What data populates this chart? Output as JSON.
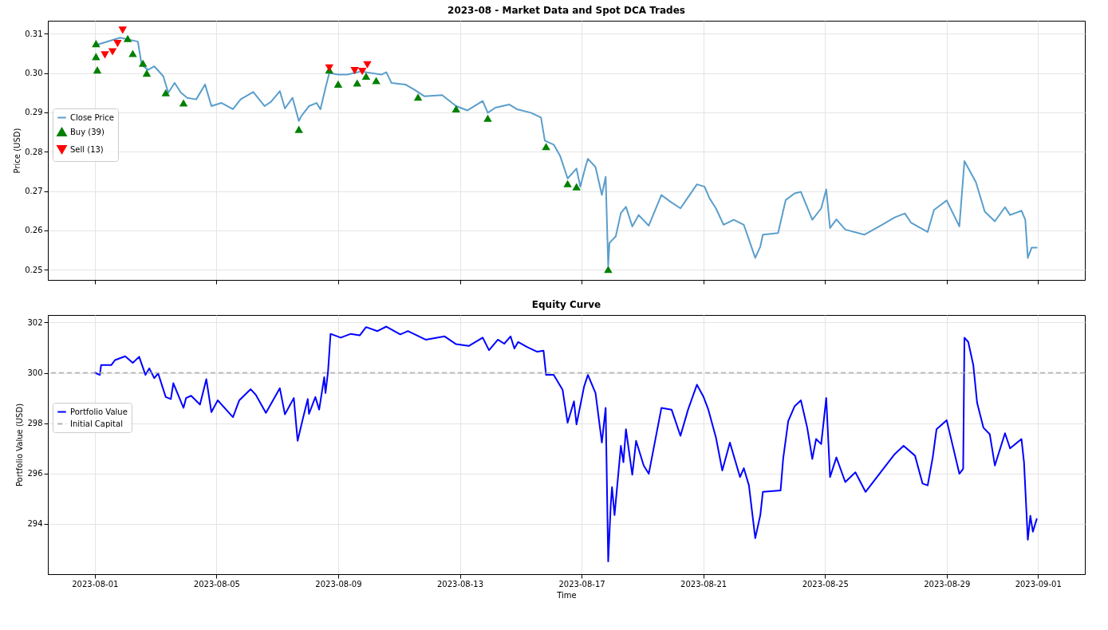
{
  "chart_data": [
    {
      "type": "line",
      "title": "2023-08 - Market Data and Spot DCA Trades",
      "ylabel": "Price (USD)",
      "xlim": [
        "2023-07-30T11:00",
        "2023-09-02T13:00"
      ],
      "xticks": [
        "2023-08-01",
        "2023-08-05",
        "2023-08-09",
        "2023-08-13",
        "2023-08-17",
        "2023-08-21",
        "2023-08-25",
        "2023-08-29",
        "2023-09-01"
      ],
      "ylim": [
        0.2474,
        0.3133
      ],
      "yticks": [
        0.25,
        0.26,
        0.27,
        0.28,
        0.29,
        {
          "value": 0.3,
          "label": "0.30"
        },
        0.31
      ],
      "grid": true,
      "legend": "top left",
      "tick_labels": "y",
      "series": [
        {
          "name": "Close Price",
          "color": "#5a9ecc",
          "x": [
            "2023-08-01T00:00",
            "2023-08-01T20:00",
            "2023-08-02T10:00",
            "2023-08-02T13:00",
            "2023-08-02T18:00",
            "2023-08-02T23:00",
            "2023-08-03T06:00",
            "2023-08-03T10:00",
            "2023-08-03T15:00",
            "2023-08-03T20:00",
            "2023-08-04T01:00",
            "2023-08-04T08:00",
            "2023-08-04T15:00",
            "2023-08-04T20:00",
            "2023-08-05T04:00",
            "2023-08-05T13:00",
            "2023-08-05T19:00",
            "2023-08-06T05:00",
            "2023-08-06T14:00",
            "2023-08-06T19:00",
            "2023-08-07T02:00",
            "2023-08-07T06:00",
            "2023-08-07T12:00",
            "2023-08-07T17:00",
            "2023-08-07T19:00",
            "2023-08-08T01:00",
            "2023-08-08T07:00",
            "2023-08-08T10:00",
            "2023-08-08T14:00",
            "2023-08-08T17:00",
            "2023-08-09T00:00",
            "2023-08-09T07:00",
            "2023-08-09T18:00",
            "2023-08-10T10:00",
            "2023-08-10T14:00",
            "2023-08-10T18:00",
            "2023-08-11T05:00",
            "2023-08-11T12:00",
            "2023-08-11T20:00",
            "2023-08-12T10:00",
            "2023-08-12T21:00",
            "2023-08-13T06:00",
            "2023-08-13T18:00",
            "2023-08-13T22:00",
            "2023-08-14T04:00",
            "2023-08-14T15:00",
            "2023-08-14T21:00",
            "2023-08-15T08:00",
            "2023-08-15T16:00",
            "2023-08-15T19:00",
            "2023-08-16T02:00",
            "2023-08-16T07:00",
            "2023-08-16T13:00",
            "2023-08-16T20:00",
            "2023-08-16T23:00",
            "2023-08-17T03:00",
            "2023-08-17T05:00",
            "2023-08-17T11:00",
            "2023-08-17T16:00",
            "2023-08-17T19:00",
            "2023-08-17T21:00",
            "2023-08-17T22:00",
            "2023-08-18T03:00",
            "2023-08-18T07:00",
            "2023-08-18T11:00",
            "2023-08-18T16:00",
            "2023-08-18T21:00",
            "2023-08-19T05:00",
            "2023-08-19T15:00",
            "2023-08-19T22:00",
            "2023-08-20T06:00",
            "2023-08-20T19:00",
            "2023-08-21T01:00",
            "2023-08-21T05:00",
            "2023-08-21T10:00",
            "2023-08-21T16:00",
            "2023-08-22T00:00",
            "2023-08-22T08:00",
            "2023-08-22T17:00",
            "2023-08-22T21:00",
            "2023-08-22T23:00",
            "2023-08-23T11:00",
            "2023-08-23T17:00",
            "2023-08-24T00:00",
            "2023-08-24T05:00",
            "2023-08-24T14:00",
            "2023-08-24T21:00",
            "2023-08-25T01:00",
            "2023-08-25T04:00",
            "2023-08-25T09:00",
            "2023-08-25T16:00",
            "2023-08-26T07:00",
            "2023-08-26T21:00",
            "2023-08-27T07:00",
            "2023-08-27T15:00",
            "2023-08-27T20:00",
            "2023-08-28T09:00",
            "2023-08-28T14:00",
            "2023-08-29T00:00",
            "2023-08-29T10:00",
            "2023-08-29T14:00",
            "2023-08-29T23:00",
            "2023-08-30T06:00",
            "2023-08-30T14:00",
            "2023-08-30T22:00",
            "2023-08-31T02:00",
            "2023-08-31T11:00",
            "2023-08-31T14:00",
            "2023-08-31T16:00",
            "2023-08-31T19:00",
            "2023-08-31T23:00"
          ],
          "values": [
            0.307,
            0.309,
            0.308,
            0.3021,
            0.3008,
            0.3017,
            0.2992,
            0.295,
            0.2975,
            0.295,
            0.2937,
            0.2933,
            0.2971,
            0.2916,
            0.2924,
            0.2908,
            0.2933,
            0.2952,
            0.2916,
            0.2927,
            0.2954,
            0.291,
            0.2937,
            0.2878,
            0.2891,
            0.2916,
            0.2924,
            0.2908,
            0.2962,
            0.3,
            0.2996,
            0.2996,
            0.3004,
            0.2996,
            0.3002,
            0.2975,
            0.2971,
            0.2958,
            0.2941,
            0.2944,
            0.2916,
            0.2905,
            0.2929,
            0.2899,
            0.2912,
            0.292,
            0.2908,
            0.2899,
            0.2887,
            0.2828,
            0.2818,
            0.279,
            0.2732,
            0.2757,
            0.2711,
            0.2761,
            0.2782,
            0.2761,
            0.269,
            0.2736,
            0.251,
            0.2568,
            0.2585,
            0.2644,
            0.266,
            0.261,
            0.2639,
            0.2612,
            0.269,
            0.2673,
            0.2656,
            0.2717,
            0.2711,
            0.2681,
            0.2656,
            0.2614,
            0.2627,
            0.2614,
            0.253,
            0.2559,
            0.2589,
            0.2593,
            0.2677,
            0.2694,
            0.2698,
            0.2627,
            0.2656,
            0.2704,
            0.2606,
            0.2628,
            0.2602,
            0.2589,
            0.2614,
            0.2633,
            0.2643,
            0.2619,
            0.2596,
            0.2652,
            0.2676,
            0.261,
            0.2776,
            0.2723,
            0.2648,
            0.2623,
            0.2659,
            0.2639,
            0.265,
            0.2627,
            0.253,
            0.2556,
            0.2556
          ]
        },
        {
          "name": "Buy (39)",
          "type": "scatter",
          "marker": "triangle",
          "color": "#008000",
          "x": [
            "2023-08-01T01:00",
            "2023-08-01T01:00",
            "2023-08-01T02:00",
            "2023-08-02T02:00",
            "2023-08-02T06:00",
            "2023-08-02T14:00",
            "2023-08-02T17:00",
            "2023-08-03T08:00",
            "2023-08-03T22:00",
            "2023-08-07T17:00",
            "2023-08-08T17:00",
            "2023-08-09T00:00",
            "2023-08-09T15:00",
            "2023-08-09T22:00",
            "2023-08-10T06:00",
            "2023-08-11T15:00",
            "2023-08-12T21:00",
            "2023-08-13T22:00",
            "2023-08-15T20:00",
            "2023-08-16T13:00",
            "2023-08-16T20:00",
            "2023-08-17T21:00"
          ],
          "values": [
            0.3075,
            0.3042,
            0.3008,
            0.3088,
            0.305,
            0.3025,
            0.3,
            0.295,
            0.2924,
            0.2857,
            0.3008,
            0.2972,
            0.2975,
            0.2992,
            0.2981,
            0.2939,
            0.2909,
            0.2885,
            0.2813,
            0.2719,
            0.2711,
            0.2501
          ]
        },
        {
          "name": "Sell (13)",
          "type": "scatter",
          "marker": "triangle-down",
          "color": "#ff0000",
          "x": [
            "2023-08-01T08:00",
            "2023-08-01T14:00",
            "2023-08-01T18:00",
            "2023-08-01T22:00",
            "2023-08-08T17:00",
            "2023-08-09T13:00",
            "2023-08-09T19:00",
            "2023-08-09T23:00"
          ],
          "values": [
            0.3046,
            0.3054,
            0.3075,
            0.3109,
            0.3013,
            0.3006,
            0.3004,
            0.3021
          ]
        }
      ]
    },
    {
      "type": "line",
      "title": "Equity Curve",
      "xlabel": "Time",
      "ylabel": "Portfolio Value (USD)",
      "xlim": [
        "2023-07-30T11:00",
        "2023-09-02T13:00"
      ],
      "xticks": [
        "2023-08-01",
        "2023-08-05",
        "2023-08-09",
        "2023-08-13",
        "2023-08-17",
        "2023-08-21",
        "2023-08-25",
        "2023-08-29",
        "2023-09-01"
      ],
      "ylim": [
        292.0,
        302.3
      ],
      "yticks": [
        294,
        296,
        298,
        300,
        302
      ],
      "grid": true,
      "legend": "top left",
      "ref_lines": [
        {
          "axis": "y",
          "value": 300,
          "label": "Initial Capital",
          "color": "#b0b0b0",
          "line_style": "dashed"
        }
      ],
      "series": [
        {
          "name": "Portfolio Value",
          "color": "#0000ff",
          "x": [
            "2023-08-01T00:00",
            "2023-08-01T04:00",
            "2023-08-01T05:00",
            "2023-08-01T13:00",
            "2023-08-01T16:00",
            "2023-08-02T00:00",
            "2023-08-02T06:00",
            "2023-08-02T11:00",
            "2023-08-02T16:00",
            "2023-08-02T19:00",
            "2023-08-02T23:00",
            "2023-08-03T02:00",
            "2023-08-03T08:00",
            "2023-08-03T12:00",
            "2023-08-03T14:00",
            "2023-08-03T22:00",
            "2023-08-04T00:00",
            "2023-08-04T04:00",
            "2023-08-04T11:00",
            "2023-08-04T16:00",
            "2023-08-04T20:00",
            "2023-08-05T01:00",
            "2023-08-05T13:00",
            "2023-08-05T18:00",
            "2023-08-06T03:00",
            "2023-08-06T07:00",
            "2023-08-06T15:00",
            "2023-08-07T02:00",
            "2023-08-07T06:00",
            "2023-08-07T13:00",
            "2023-08-07T16:00",
            "2023-08-07T20:00",
            "2023-08-08T00:00",
            "2023-08-08T01:00",
            "2023-08-08T06:00",
            "2023-08-08T09:00",
            "2023-08-08T13:00",
            "2023-08-08T14:00",
            "2023-08-08T16:00",
            "2023-08-08T18:00",
            "2023-08-09T02:00",
            "2023-08-09T10:00",
            "2023-08-09T17:00",
            "2023-08-09T22:00",
            "2023-08-10T07:00",
            "2023-08-10T14:00",
            "2023-08-11T01:00",
            "2023-08-11T07:00",
            "2023-08-11T21:00",
            "2023-08-12T12:00",
            "2023-08-12T21:00",
            "2023-08-13T07:00",
            "2023-08-13T18:00",
            "2023-08-13T23:00",
            "2023-08-14T06:00",
            "2023-08-14T11:00",
            "2023-08-14T16:00",
            "2023-08-14T19:00",
            "2023-08-14T22:00",
            "2023-08-15T05:00",
            "2023-08-15T13:00",
            "2023-08-15T18:00",
            "2023-08-15T20:00",
            "2023-08-16T02:00",
            "2023-08-16T09:00",
            "2023-08-16T13:00",
            "2023-08-16T18:00",
            "2023-08-16T20:00",
            "2023-08-17T02:00",
            "2023-08-17T05:00",
            "2023-08-17T11:00",
            "2023-08-17T16:00",
            "2023-08-17T19:00",
            "2023-08-17T21:00",
            "2023-08-17T23:00",
            "2023-08-18T00:00",
            "2023-08-18T02:00",
            "2023-08-18T07:00",
            "2023-08-18T09:00",
            "2023-08-18T11:00",
            "2023-08-18T16:00",
            "2023-08-18T19:00",
            "2023-08-19T01:00",
            "2023-08-19T05:00",
            "2023-08-19T15:00",
            "2023-08-19T23:00",
            "2023-08-20T06:00",
            "2023-08-20T12:00",
            "2023-08-20T19:00",
            "2023-08-21T00:00",
            "2023-08-21T04:00",
            "2023-08-21T10:00",
            "2023-08-21T15:00",
            "2023-08-21T21:00",
            "2023-08-22T05:00",
            "2023-08-22T08:00",
            "2023-08-22T12:00",
            "2023-08-22T17:00",
            "2023-08-22T21:00",
            "2023-08-22T23:00",
            "2023-08-23T13:00",
            "2023-08-23T15:00",
            "2023-08-23T19:00",
            "2023-08-24T00:00",
            "2023-08-24T05:00",
            "2023-08-24T10:00",
            "2023-08-24T14:00",
            "2023-08-24T17:00",
            "2023-08-24T21:00",
            "2023-08-25T01:00",
            "2023-08-25T04:00",
            "2023-08-25T09:00",
            "2023-08-25T16:00",
            "2023-08-26T00:00",
            "2023-08-26T08:00",
            "2023-08-26T22:00",
            "2023-08-27T07:00",
            "2023-08-27T14:00",
            "2023-08-27T23:00",
            "2023-08-28T05:00",
            "2023-08-28T09:00",
            "2023-08-28T13:00",
            "2023-08-28T16:00",
            "2023-08-29T00:00",
            "2023-08-29T10:00",
            "2023-08-29T13:00",
            "2023-08-29T14:00",
            "2023-08-29T17:00",
            "2023-08-29T21:00",
            "2023-08-30T00:00",
            "2023-08-30T05:00",
            "2023-08-30T10:00",
            "2023-08-30T14:00",
            "2023-08-30T22:00",
            "2023-08-31T02:00",
            "2023-08-31T11:00",
            "2023-08-31T13:00",
            "2023-08-31T16:00",
            "2023-08-31T18:00",
            "2023-08-31T20:00",
            "2023-08-31T23:00"
          ],
          "values": [
            300.01,
            299.92,
            300.31,
            300.31,
            300.51,
            300.66,
            300.4,
            300.64,
            299.92,
            300.18,
            299.79,
            299.98,
            299.04,
            298.96,
            299.59,
            298.61,
            299.0,
            299.09,
            298.74,
            299.75,
            298.44,
            298.91,
            298.24,
            298.91,
            299.35,
            299.13,
            298.41,
            299.39,
            298.35,
            299.0,
            297.3,
            298.15,
            298.96,
            298.37,
            299.04,
            298.54,
            299.83,
            299.2,
            300.05,
            301.55,
            301.4,
            301.55,
            301.49,
            301.82,
            301.66,
            301.84,
            301.53,
            301.66,
            301.32,
            301.45,
            301.14,
            301.07,
            301.4,
            300.9,
            301.32,
            301.16,
            301.45,
            300.97,
            301.23,
            301.03,
            300.84,
            300.88,
            299.92,
            299.92,
            299.33,
            298.02,
            298.87,
            297.95,
            299.46,
            299.92,
            299.2,
            297.23,
            298.61,
            292.51,
            294.74,
            295.46,
            294.35,
            297.1,
            296.45,
            297.76,
            295.95,
            297.3,
            296.32,
            295.99,
            298.61,
            298.54,
            297.5,
            298.54,
            299.53,
            299.07,
            298.54,
            297.43,
            296.12,
            297.23,
            295.86,
            296.21,
            295.53,
            293.43,
            294.35,
            295.27,
            295.33,
            296.58,
            298.08,
            298.67,
            298.91,
            297.82,
            296.58,
            297.37,
            297.17,
            299.0,
            295.86,
            296.64,
            295.66,
            296.05,
            295.27,
            296.19,
            296.77,
            297.1,
            296.71,
            295.6,
            295.53,
            296.64,
            297.76,
            298.12,
            295.99,
            296.19,
            301.4,
            301.23,
            300.31,
            298.81,
            297.82,
            297.56,
            296.32,
            297.6,
            297.0,
            297.37,
            296.45,
            293.37,
            294.32,
            293.69,
            294.19
          ]
        }
      ]
    }
  ]
}
